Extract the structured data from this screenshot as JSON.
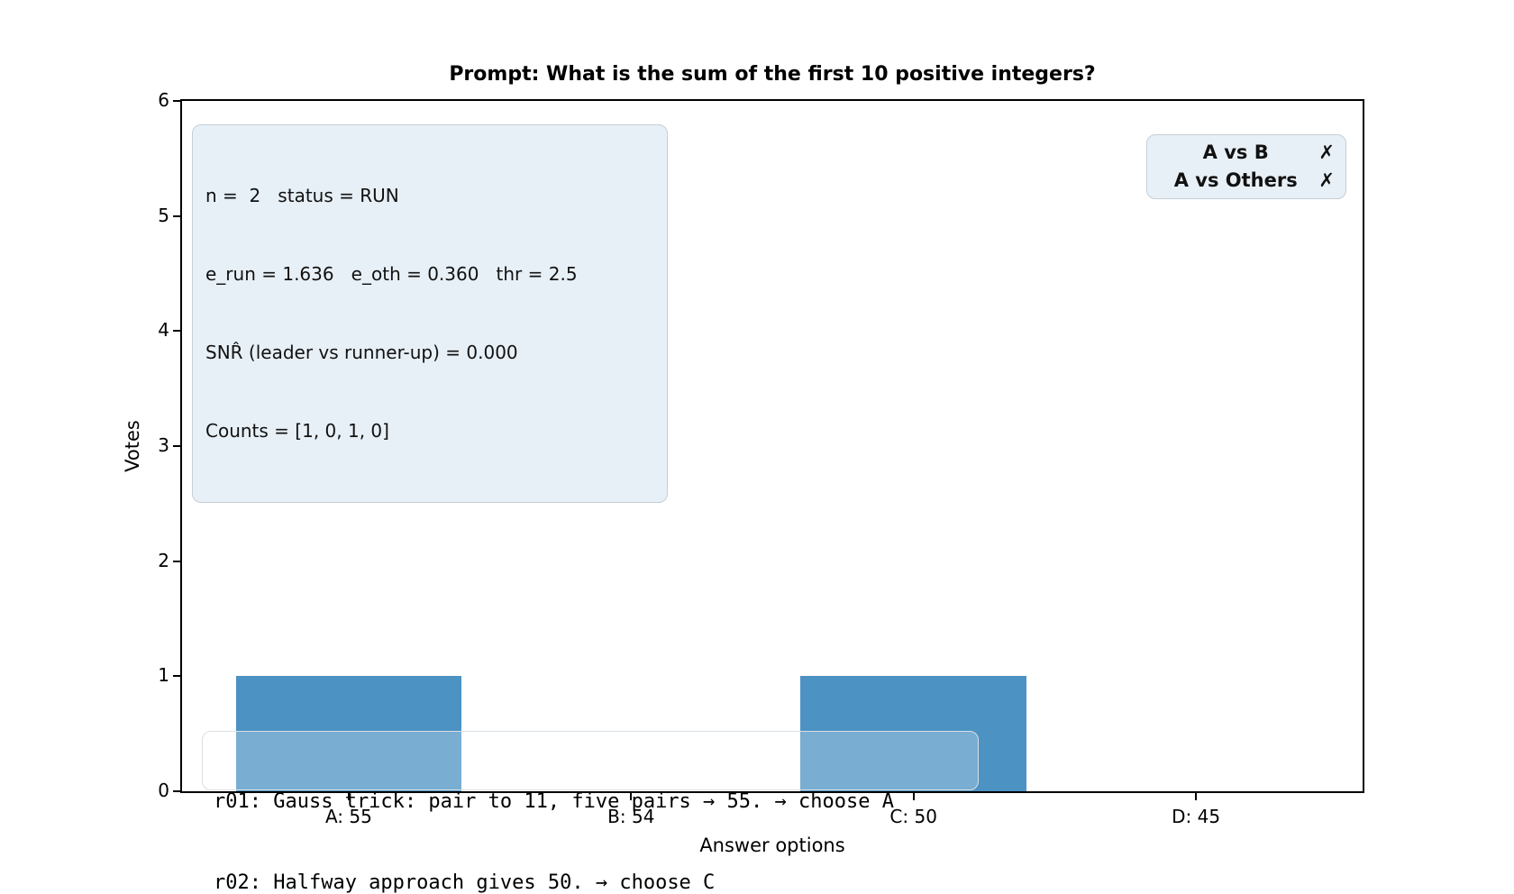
{
  "figure": {
    "title": "Prompt: What is the sum of the first 10 positive integers?"
  },
  "axes": {
    "xlabel": "Answer options",
    "ylabel": "Votes",
    "y_ticks": [
      "0",
      "1",
      "2",
      "3",
      "4",
      "5",
      "6"
    ],
    "x_tick_labels": [
      "A: 55",
      "B: 54",
      "C: 50",
      "D: 45"
    ]
  },
  "stats_box": {
    "lines": [
      "n =  2   status = RUN",
      "e_run = 1.636   e_oth = 0.360   thr = 2.5",
      "SNR̂ (leader vs runner-up) = 0.000",
      "Counts = [1, 0, 1, 0]"
    ]
  },
  "significance": {
    "rows": [
      {
        "label": "A vs B",
        "mark": "✗"
      },
      {
        "label": "A vs Others",
        "mark": "✗"
      }
    ]
  },
  "transcript": {
    "lines": [
      "r01: Gauss trick: pair to 11, five pairs → 55. → choose A",
      "r02: Halfway approach gives 50. → choose C"
    ]
  },
  "colors": {
    "bar": "#4c92c3",
    "box_bg": "#e8f0f7",
    "box_border": "#c6ced6",
    "transcript_border": "#d9dfe5"
  },
  "chart_data": {
    "type": "bar",
    "categories": [
      "A: 55",
      "B: 54",
      "C: 50",
      "D: 45"
    ],
    "values": [
      1,
      0,
      1,
      0
    ],
    "title": "Prompt: What is the sum of the first 10 positive integers?",
    "xlabel": "Answer options",
    "ylabel": "Votes",
    "ylim": [
      0,
      6
    ],
    "xlim_units": [
      -0.59,
      3.59
    ],
    "bar_width_units": 0.8,
    "bar_color": "#4c92c3",
    "grid": false,
    "legend_position": "none",
    "annotations": [
      "n =  2   status = RUN",
      "e_run = 1.636   e_oth = 0.360   thr = 2.5",
      "SNR̂ (leader vs runner-up) = 0.000",
      "Counts = [1, 0, 1, 0]",
      "A vs B ✗",
      "A vs Others ✗",
      "r01: Gauss trick: pair to 11, five pairs → 55. → choose A",
      "r02: Halfway approach gives 50. → choose C"
    ]
  }
}
